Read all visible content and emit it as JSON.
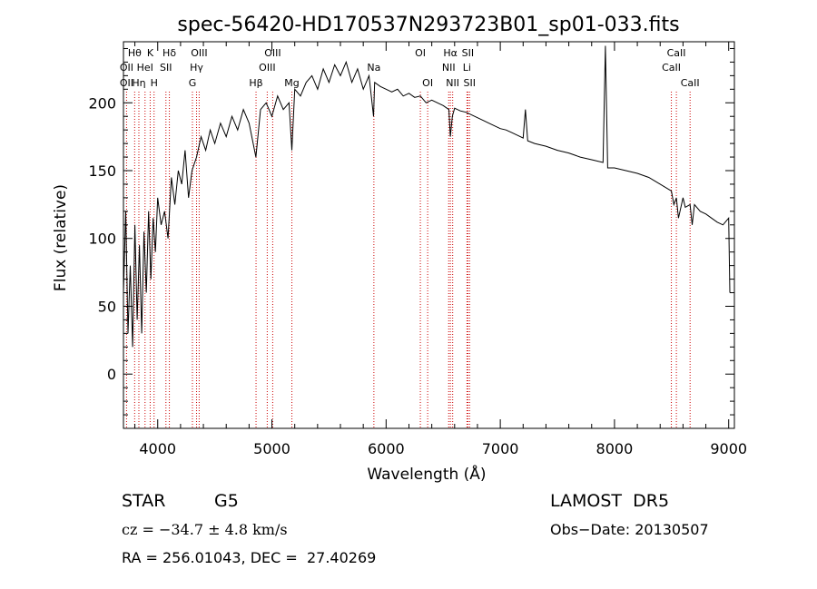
{
  "chart_data": {
    "type": "line",
    "title": "spec-56420-HD170537N293723B01_sp01-033.fits",
    "xlabel": "Wavelength (Å)",
    "ylabel": "Flux (relative)",
    "xlim": [
      3700,
      9050
    ],
    "ylim": [
      -40,
      245
    ],
    "xticks": [
      4000,
      5000,
      6000,
      7000,
      8000,
      9000
    ],
    "yticks": [
      0,
      50,
      100,
      150,
      200
    ],
    "grid": false,
    "line_color": "#000000",
    "marker_color": "#cc0000",
    "series": [
      {
        "x": [
          3700,
          3720,
          3740,
          3760,
          3780,
          3800,
          3820,
          3840,
          3860,
          3880,
          3900,
          3920,
          3940,
          3960,
          3980,
          4000,
          4030,
          4060,
          4090,
          4120,
          4150,
          4180,
          4210,
          4240,
          4270,
          4300,
          4340,
          4380,
          4420,
          4460,
          4500,
          4550,
          4600,
          4650,
          4700,
          4750,
          4800,
          4860,
          4900,
          4950,
          5000,
          5050,
          5100,
          5150,
          5175,
          5200,
          5250,
          5300,
          5350,
          5400,
          5450,
          5500,
          5550,
          5600,
          5650,
          5700,
          5750,
          5800,
          5850,
          5890,
          5900,
          5950,
          6000,
          6050,
          6100,
          6150,
          6200,
          6250,
          6300,
          6350,
          6400,
          6450,
          6500,
          6550,
          6563,
          6580,
          6600,
          6650,
          6700,
          6750,
          6800,
          6850,
          6900,
          6950,
          7000,
          7050,
          7100,
          7150,
          7200,
          7220,
          7240,
          7300,
          7400,
          7500,
          7600,
          7700,
          7800,
          7900,
          7920,
          7940,
          8000,
          8100,
          8200,
          8300,
          8400,
          8498,
          8520,
          8542,
          8560,
          8600,
          8620,
          8662,
          8680,
          8700,
          8750,
          8800,
          8850,
          8900,
          8950,
          9000,
          9010
        ],
        "values": [
          60,
          120,
          30,
          80,
          20,
          110,
          40,
          95,
          30,
          105,
          60,
          120,
          70,
          115,
          90,
          130,
          110,
          120,
          100,
          145,
          125,
          150,
          140,
          165,
          130,
          150,
          160,
          175,
          165,
          180,
          170,
          185,
          175,
          190,
          180,
          195,
          185,
          160,
          195,
          200,
          190,
          205,
          195,
          200,
          165,
          210,
          205,
          215,
          220,
          210,
          225,
          215,
          228,
          220,
          230,
          215,
          225,
          210,
          220,
          190,
          215,
          212,
          210,
          208,
          210,
          205,
          207,
          204,
          205,
          200,
          202,
          200,
          198,
          195,
          175,
          190,
          196,
          194,
          193,
          191,
          189,
          187,
          185,
          183,
          181,
          180,
          178,
          176,
          174,
          195,
          172,
          170,
          168,
          165,
          163,
          160,
          158,
          156,
          242,
          152,
          152,
          150,
          148,
          145,
          140,
          135,
          125,
          130,
          115,
          130,
          123,
          125,
          110,
          125,
          120,
          118,
          115,
          112,
          110,
          115,
          60
        ]
      }
    ],
    "lines": [
      {
        "x": 3798,
        "label": "Hθ",
        "row": 1
      },
      {
        "x": 3727,
        "label": "OII",
        "row": 2
      },
      {
        "x": 3727,
        "label": "OII",
        "row": 3
      },
      {
        "x": 3835,
        "label": "Hη",
        "row": 3
      },
      {
        "x": 3889,
        "label": "HeI",
        "row": 2
      },
      {
        "x": 3934,
        "label": "K",
        "row": 1
      },
      {
        "x": 3968,
        "label": "H",
        "row": 3
      },
      {
        "x": 4072,
        "label": "SII",
        "row": 2
      },
      {
        "x": 4102,
        "label": "Hδ",
        "row": 1
      },
      {
        "x": 4304,
        "label": "G",
        "row": 3
      },
      {
        "x": 4340,
        "label": "Hγ",
        "row": 2
      },
      {
        "x": 4363,
        "label": "OIII",
        "row": 1
      },
      {
        "x": 4861,
        "label": "Hβ",
        "row": 3
      },
      {
        "x": 4959,
        "label": "OIII",
        "row": 2
      },
      {
        "x": 5007,
        "label": "OIII",
        "row": 1
      },
      {
        "x": 5175,
        "label": "Mg",
        "row": 3
      },
      {
        "x": 5893,
        "label": "Na",
        "row": 2
      },
      {
        "x": 6300,
        "label": "OI",
        "row": 1
      },
      {
        "x": 6364,
        "label": "OI",
        "row": 3
      },
      {
        "x": 6548,
        "label": "NII",
        "row": 2
      },
      {
        "x": 6563,
        "label": "Hα",
        "row": 1
      },
      {
        "x": 6583,
        "label": "NII",
        "row": 3
      },
      {
        "x": 6708,
        "label": "Li",
        "row": 2
      },
      {
        "x": 6716,
        "label": "SII",
        "row": 1
      },
      {
        "x": 6731,
        "label": "SII",
        "row": 3
      },
      {
        "x": 8498,
        "label": "CaII",
        "row": 2
      },
      {
        "x": 8542,
        "label": "CaII",
        "row": 1
      },
      {
        "x": 8662,
        "label": "CaII",
        "row": 3
      }
    ]
  },
  "info": {
    "obj_class": "STAR",
    "subclass": "G5",
    "survey": "LAMOST  DR5",
    "redshift_text": "cz = −34.7 ± 4.8 km/s",
    "obs_date": "Obs−Date: 20130507",
    "coords": "RA = 256.01043, DEC =  27.40269"
  }
}
